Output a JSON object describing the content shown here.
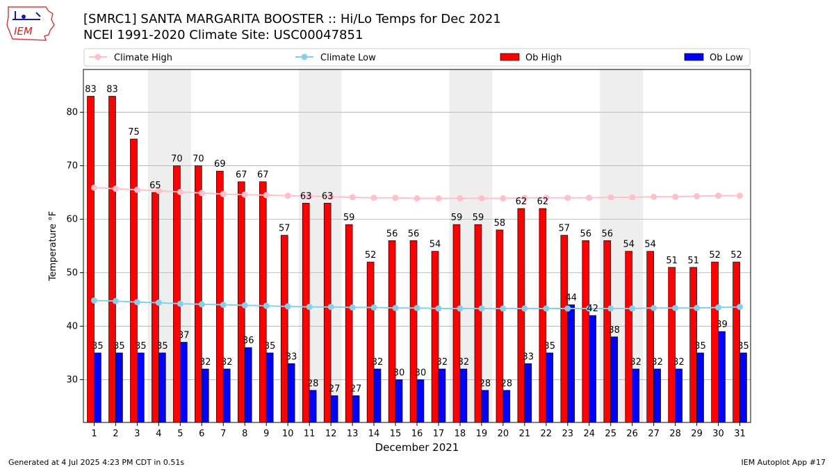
{
  "header": {
    "title": "[SMRC1] SANTA MARGARITA BOOSTER :: Hi/Lo Temps for Dec 2021",
    "subtitle": "NCEI 1991-2020 Climate Site: USC00047851",
    "logo_text": "IEM"
  },
  "footer": {
    "generated": "Generated at 4 Jul 2025 4:23 PM CDT in 0.51s",
    "app": "IEM Autoplot App #17"
  },
  "colors": {
    "ob_high": "#ff0000",
    "ob_low": "#0000ff",
    "climate_high": "#ffc0cb",
    "climate_low": "#87ceeb",
    "weekend_band": "#eeeeee",
    "grid": "#b0b0b0"
  },
  "chart_data": {
    "type": "bar",
    "xlabel": "December 2021",
    "ylabel": "Temperature °F",
    "ylim": [
      22,
      88
    ],
    "yticks": [
      30,
      40,
      50,
      60,
      70,
      80
    ],
    "grid": "horizontal",
    "legend_position": "top",
    "categories": [
      1,
      2,
      3,
      4,
      5,
      6,
      7,
      8,
      9,
      10,
      11,
      12,
      13,
      14,
      15,
      16,
      17,
      18,
      19,
      20,
      21,
      22,
      23,
      24,
      25,
      26,
      27,
      28,
      29,
      30,
      31
    ],
    "weekend_days": [
      4,
      5,
      11,
      12,
      18,
      19,
      25,
      26
    ],
    "series": [
      {
        "name": "Climate High",
        "kind": "line",
        "values": [
          65.9,
          65.7,
          65.5,
          65.3,
          65.1,
          64.9,
          64.7,
          64.6,
          64.5,
          64.4,
          64.3,
          64.2,
          64.1,
          64.0,
          64.0,
          63.9,
          63.9,
          63.9,
          63.9,
          63.9,
          64.0,
          64.0,
          64.0,
          64.0,
          64.1,
          64.1,
          64.2,
          64.2,
          64.3,
          64.4,
          64.4
        ]
      },
      {
        "name": "Climate Low",
        "kind": "line",
        "values": [
          44.8,
          44.7,
          44.5,
          44.4,
          44.2,
          44.1,
          44.0,
          43.9,
          43.8,
          43.7,
          43.6,
          43.6,
          43.5,
          43.5,
          43.4,
          43.4,
          43.3,
          43.3,
          43.3,
          43.3,
          43.3,
          43.3,
          43.3,
          43.3,
          43.3,
          43.3,
          43.4,
          43.4,
          43.4,
          43.5,
          43.6
        ]
      },
      {
        "name": "Ob High",
        "kind": "bar",
        "values": [
          83,
          83,
          75,
          65,
          70,
          70,
          69,
          67,
          67,
          57,
          63,
          63,
          59,
          52,
          56,
          56,
          54,
          59,
          59,
          58,
          62,
          62,
          57,
          56,
          56,
          54,
          54,
          51,
          51,
          52,
          52
        ]
      },
      {
        "name": "Ob Low",
        "kind": "bar",
        "values": [
          35,
          35,
          35,
          35,
          37,
          32,
          32,
          36,
          35,
          33,
          28,
          27,
          27,
          32,
          30,
          30,
          32,
          32,
          28,
          28,
          33,
          35,
          44,
          42,
          38,
          32,
          32,
          32,
          35,
          39,
          35
        ]
      }
    ]
  }
}
